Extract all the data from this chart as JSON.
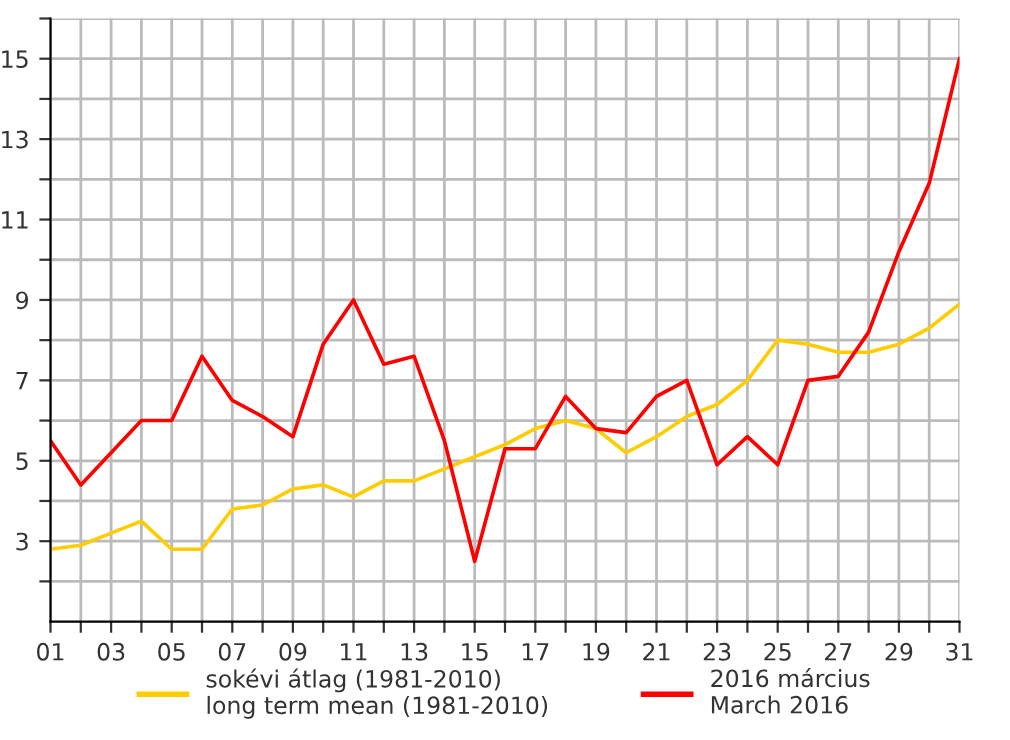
{
  "chart_data": {
    "type": "line",
    "x": [
      1,
      2,
      3,
      4,
      5,
      6,
      7,
      8,
      9,
      10,
      11,
      12,
      13,
      14,
      15,
      16,
      17,
      18,
      19,
      20,
      21,
      22,
      23,
      24,
      25,
      26,
      27,
      28,
      29,
      30,
      31
    ],
    "series": [
      {
        "name": "sokévi átlag (1981-2010)\nlong term mean (1981-2010)",
        "color": "#ffcc00",
        "values": [
          2.8,
          2.9,
          3.2,
          3.5,
          2.8,
          2.8,
          3.8,
          3.9,
          4.3,
          4.4,
          4.1,
          4.5,
          4.5,
          4.8,
          5.1,
          5.4,
          5.8,
          6.0,
          5.8,
          5.2,
          5.6,
          6.1,
          6.4,
          7.0,
          8.0,
          7.9,
          7.7,
          7.7,
          7.9,
          8.3,
          8.9
        ]
      },
      {
        "name": "2016 március\nMarch 2016",
        "color": "#ff0000",
        "values": [
          5.5,
          4.4,
          5.2,
          6.0,
          6.0,
          7.6,
          6.5,
          6.1,
          5.6,
          7.9,
          9.0,
          7.4,
          7.6,
          5.5,
          2.5,
          5.3,
          5.3,
          6.6,
          5.8,
          5.7,
          6.6,
          7.0,
          4.9,
          5.6,
          4.9,
          7.0,
          7.1,
          8.2,
          10.2,
          11.9,
          15.0
        ]
      }
    ],
    "xlim": [
      1,
      31
    ],
    "xticks": [
      {
        "value": 1,
        "label": "01"
      },
      {
        "value": 2,
        "label": null
      },
      {
        "value": 3,
        "label": "03"
      },
      {
        "value": 4,
        "label": null
      },
      {
        "value": 5,
        "label": "05"
      },
      {
        "value": 6,
        "label": null
      },
      {
        "value": 7,
        "label": "07"
      },
      {
        "value": 8,
        "label": null
      },
      {
        "value": 9,
        "label": "09"
      },
      {
        "value": 10,
        "label": null
      },
      {
        "value": 11,
        "label": "11"
      },
      {
        "value": 12,
        "label": null
      },
      {
        "value": 13,
        "label": "13"
      },
      {
        "value": 14,
        "label": null
      },
      {
        "value": 15,
        "label": "15"
      },
      {
        "value": 16,
        "label": null
      },
      {
        "value": 17,
        "label": "17"
      },
      {
        "value": 18,
        "label": null
      },
      {
        "value": 19,
        "label": "19"
      },
      {
        "value": 20,
        "label": null
      },
      {
        "value": 21,
        "label": "21"
      },
      {
        "value": 22,
        "label": null
      },
      {
        "value": 23,
        "label": "23"
      },
      {
        "value": 24,
        "label": null
      },
      {
        "value": 25,
        "label": "25"
      },
      {
        "value": 26,
        "label": null
      },
      {
        "value": 27,
        "label": "27"
      },
      {
        "value": 28,
        "label": null
      },
      {
        "value": 29,
        "label": "29"
      },
      {
        "value": 30,
        "label": null
      },
      {
        "value": 31,
        "label": "31"
      }
    ],
    "ylim": [
      1,
      16
    ],
    "yticks": [
      {
        "value": 2,
        "label": null
      },
      3,
      {
        "value": 4,
        "label": null
      },
      5,
      {
        "value": 6,
        "label": null
      },
      7,
      {
        "value": 8,
        "label": null
      },
      9,
      {
        "value": 10,
        "label": null
      },
      11,
      {
        "value": 12,
        "label": null
      },
      13,
      {
        "value": 14,
        "label": null
      },
      15,
      {
        "value": 16,
        "label": null
      }
    ],
    "grid": true,
    "legend": "bottom",
    "marker": "none",
    "line_style": "solid"
  }
}
